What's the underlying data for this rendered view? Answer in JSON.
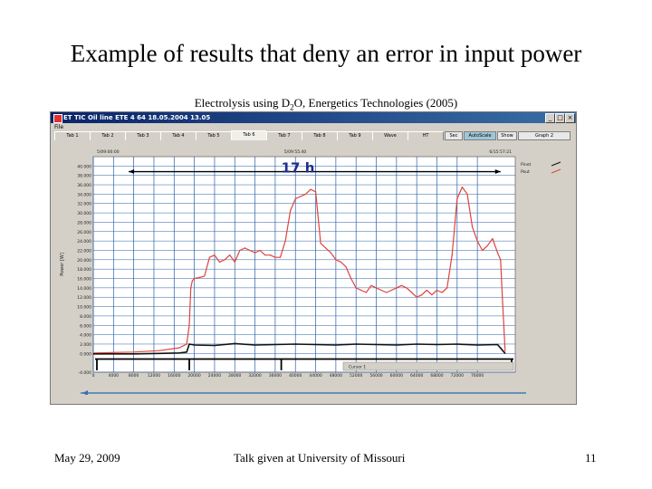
{
  "slide": {
    "title": "Example of results that deny an error in input power",
    "subtitle_pre": "Electrolysis using D",
    "subtitle_sub": "2",
    "subtitle_post": "O, Energetics Technologies (2005)",
    "footer_date": "May 29, 2009",
    "footer_talk": "Talk given at University of Missouri",
    "page_number": "11"
  },
  "window": {
    "title": "ET TIC Oil line ETE 4 64 18.05.2004 13.05",
    "menu": "File",
    "tabs": [
      "Tab 1",
      "Tab 2",
      "Tab 3",
      "Tab 4",
      "Tab 5",
      "Tab 6",
      "Tab 7",
      "Tab 8",
      "Tab 9",
      "Wave",
      "HT"
    ],
    "active_tab": "Tab 6",
    "button_labels": [
      "Sec",
      "AutoScale",
      "Show",
      "Graph 2"
    ],
    "timestamps": [
      "5/09:00:00",
      "5/09:55:40",
      "6/15:57:21"
    ],
    "cursor_label": "Cursor 1"
  },
  "chart_data": {
    "type": "line",
    "title": "",
    "annotation": "17 h",
    "xlabel": "",
    "ylabel": "Power [W]",
    "xlim": [
      0,
      83500
    ],
    "ylim": [
      -4,
      42
    ],
    "yticks": [
      -4,
      0,
      2,
      4,
      6,
      8,
      10,
      12,
      14,
      16,
      18,
      20,
      22,
      24,
      26,
      28,
      30,
      32,
      34,
      36,
      38,
      40
    ],
    "ytick_labels": [
      "-4.000",
      "0.000",
      "2.000",
      "4.000",
      "6.000",
      "8.000",
      "10.000",
      "12.000",
      "14.000",
      "16.000",
      "18.000",
      "20.000",
      "22.000",
      "24.000",
      "26.000",
      "28.000",
      "30.000",
      "32.000",
      "34.000",
      "36.000",
      "38.000",
      "40.000"
    ],
    "xticks": [
      0,
      4000,
      8000,
      12000,
      16000,
      20000,
      24000,
      28000,
      32000,
      36000,
      40000,
      44000,
      48000,
      52000,
      56000,
      60000,
      64000,
      68000,
      72000,
      76000
    ],
    "xtick_labels": [
      "0",
      "4000",
      "8000",
      "12000",
      "16000",
      "20000",
      "24000",
      "28000",
      "32000",
      "36000",
      "40000",
      "44000",
      "48000",
      "52000",
      "56000",
      "60000",
      "64000",
      "68000",
      "72000",
      "76000"
    ],
    "grid": true,
    "legend_position": "top-right",
    "series": [
      {
        "name": "Pout",
        "color": "#e0443c",
        "x": [
          0,
          8000,
          13000,
          17000,
          18500,
          19000,
          19300,
          19600,
          20000,
          21000,
          22000,
          23000,
          24000,
          25000,
          26000,
          27000,
          28000,
          29000,
          30000,
          31000,
          32000,
          33000,
          34000,
          35000,
          36000,
          37000,
          38000,
          39000,
          40000,
          41000,
          42000,
          43000,
          44000,
          45000,
          46000,
          47000,
          48000,
          49000,
          50000,
          51000,
          52000,
          53000,
          54000,
          55000,
          56000,
          57000,
          58000,
          59000,
          60000,
          61000,
          62000,
          63000,
          64000,
          65000,
          66000,
          67000,
          68000,
          69000,
          70000,
          71000,
          72000,
          73000,
          74000,
          75000,
          76000,
          77000,
          78000,
          79000,
          80000,
          80600,
          81000,
          81500
        ],
        "y": [
          0.1,
          0.3,
          0.6,
          1.2,
          2.0,
          6.0,
          14.0,
          15.5,
          16.0,
          16.2,
          16.5,
          20.5,
          21.0,
          19.5,
          20.0,
          21.0,
          19.5,
          22.0,
          22.5,
          22.0,
          21.5,
          22.0,
          21.0,
          21.0,
          20.5,
          20.5,
          24.0,
          30.5,
          33.0,
          33.5,
          34.0,
          35.0,
          34.5,
          23.5,
          22.5,
          21.5,
          20.0,
          19.5,
          18.5,
          16.0,
          14.0,
          13.5,
          13.0,
          14.5,
          14.0,
          13.5,
          13.0,
          13.5,
          14.0,
          14.5,
          14.0,
          13.0,
          12.0,
          12.5,
          13.5,
          12.5,
          13.5,
          13.0,
          14.0,
          21.0,
          33.0,
          35.5,
          34.0,
          27.0,
          24.0,
          22.0,
          23.0,
          24.5,
          21.5,
          20.0,
          11.0,
          0.5
        ]
      },
      {
        "name": "Pinet",
        "color": "#111111",
        "x": [
          0,
          8000,
          13000,
          17000,
          18500,
          19000,
          20000,
          24000,
          28000,
          32000,
          36000,
          40000,
          44000,
          48000,
          52000,
          56000,
          60000,
          64000,
          68000,
          72000,
          76000,
          80000,
          81500
        ],
        "y": [
          -0.1,
          -0.1,
          0.0,
          0.1,
          0.3,
          2.0,
          1.8,
          1.7,
          2.1,
          1.8,
          1.9,
          2.0,
          1.9,
          1.8,
          2.0,
          1.9,
          1.8,
          2.0,
          1.9,
          2.0,
          1.8,
          1.9,
          0.0
        ]
      }
    ]
  }
}
